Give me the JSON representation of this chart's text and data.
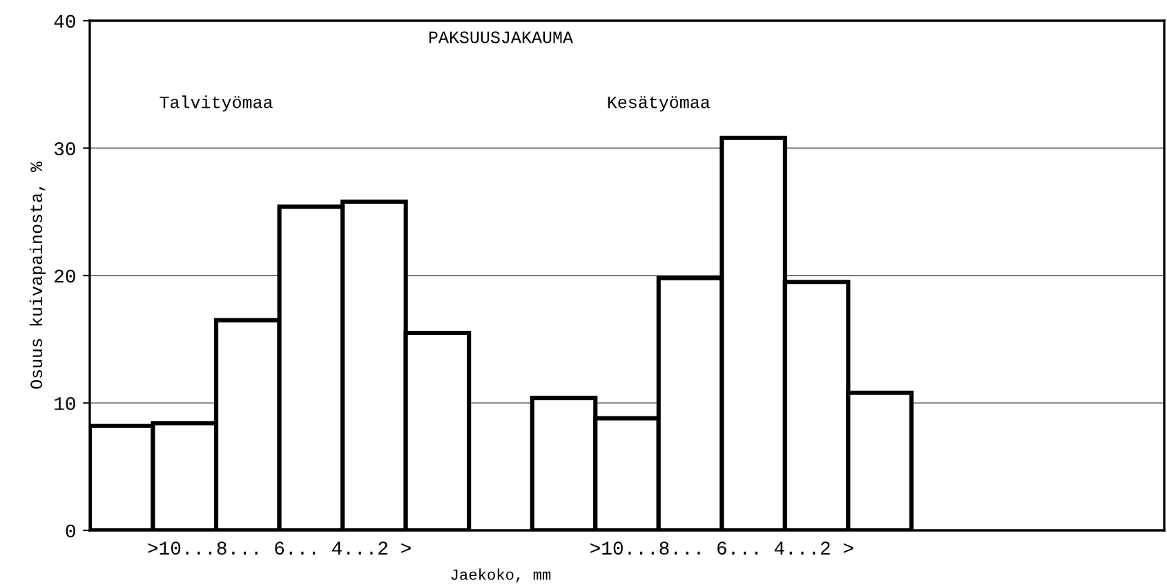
{
  "chart_data": {
    "type": "bar",
    "title": "PAKSUUSJAKAUMA",
    "xlabel": "Jaekoko, mm",
    "ylabel": "Osuus kuivapainosta, %",
    "categories": [
      null,
      null,
      null,
      null,
      null,
      null,
      null,
      null,
      null,
      null,
      null,
      null,
      null,
      null,
      null,
      null,
      null
    ],
    "series": [
      {
        "color": "#000000",
        "values": [
          8.2,
          8.4,
          16.5,
          25.4,
          25.8,
          15.5,
          null,
          10.4,
          8.8,
          19.8,
          30.8,
          19.5,
          10.8,
          null,
          null,
          null,
          null
        ]
      }
    ],
    "annotations": [
      "Talvityömaa",
      ">10...8... 6... 4...2 >",
      "Kesätyömaa",
      ">10...8... 6... 4...2 >"
    ],
    "ylim": [
      0,
      40
    ],
    "yticks": [
      0,
      10,
      20,
      30,
      40
    ],
    "grid": "y"
  }
}
